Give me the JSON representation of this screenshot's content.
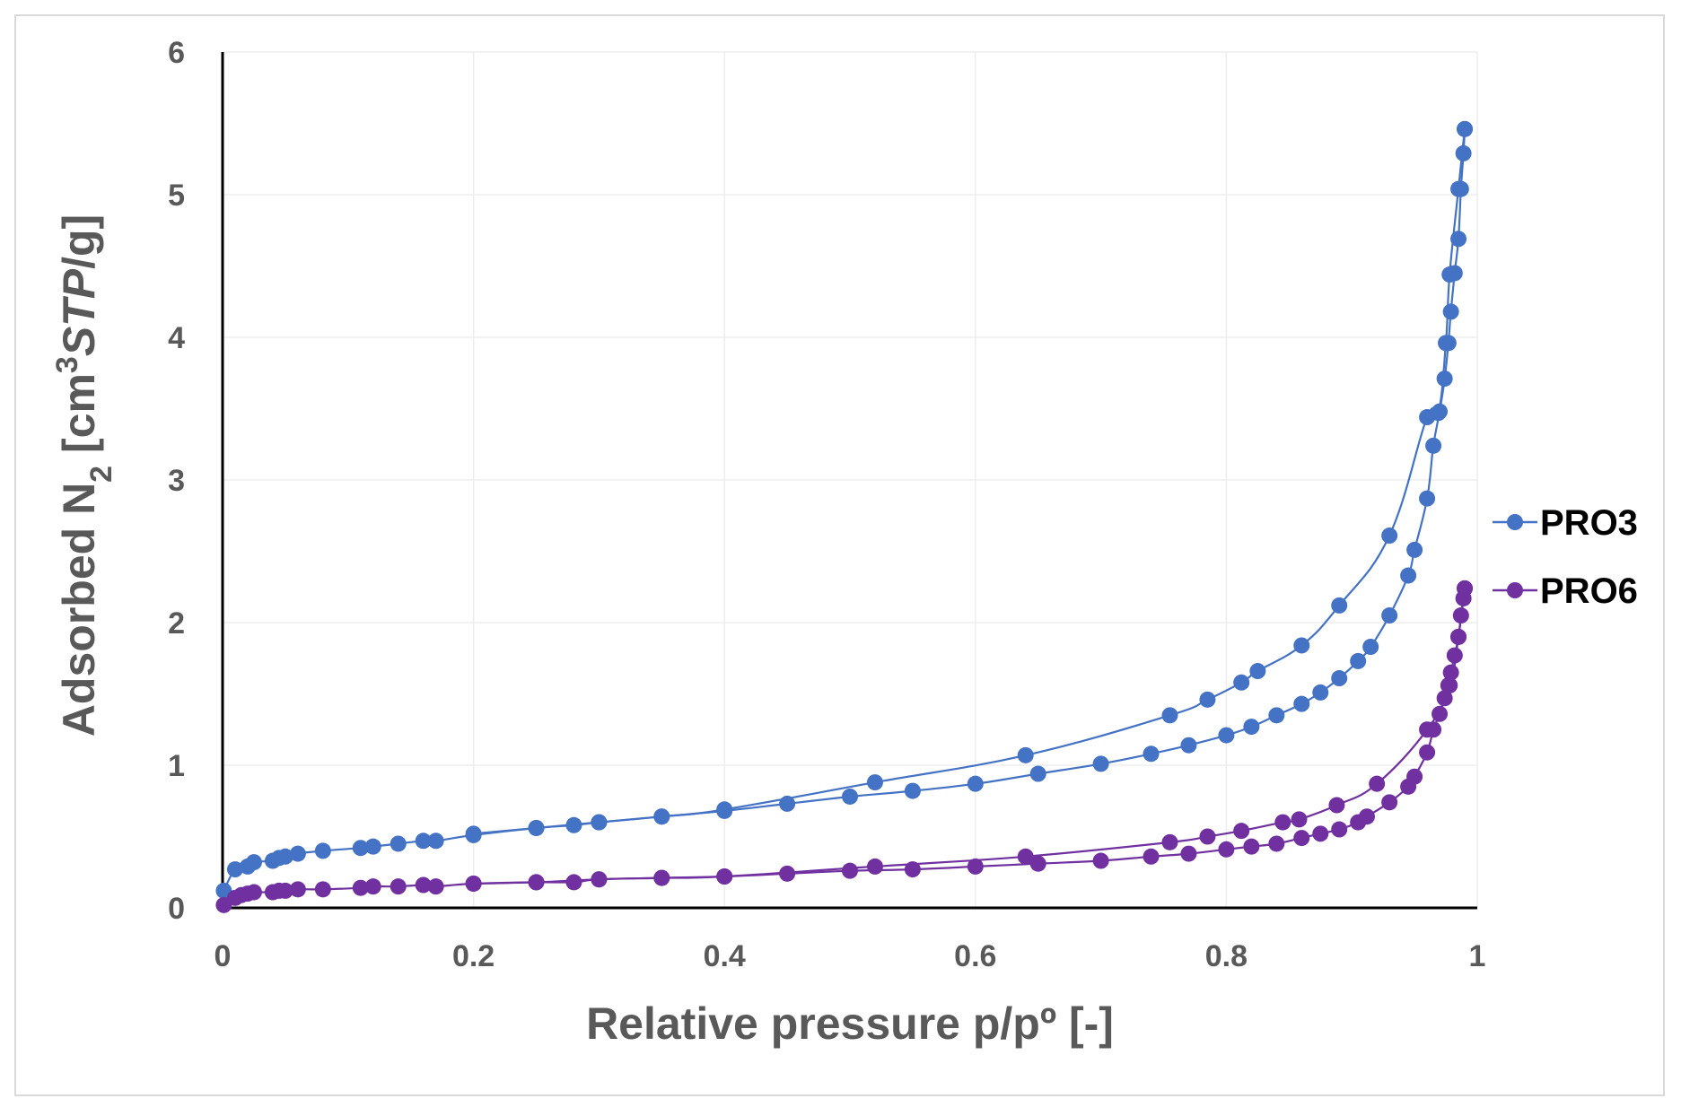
{
  "chart_data": {
    "type": "line",
    "xlabel": "Relative pressure p/pº [-]",
    "ylabel_parts": {
      "main": "Adsorbed N",
      "sub": "2",
      "bracket_open": " [cm",
      "sup": "3",
      "italic": "STP",
      "tail": "/g]"
    },
    "xlim": [
      0,
      1
    ],
    "ylim": [
      0,
      6
    ],
    "x_ticks": [
      "0",
      "0.2",
      "0.4",
      "0.6",
      "0.8",
      "1"
    ],
    "y_ticks": [
      "0",
      "1",
      "2",
      "3",
      "4",
      "5",
      "6"
    ],
    "grid": true,
    "legend_position": "right",
    "series": [
      {
        "name": "PRO3",
        "color": "#4472c4",
        "adsorption": [
          [
            0.001,
            0.12
          ],
          [
            0.01,
            0.27
          ],
          [
            0.02,
            0.29
          ],
          [
            0.025,
            0.32
          ],
          [
            0.04,
            0.33
          ],
          [
            0.045,
            0.35
          ],
          [
            0.05,
            0.36
          ],
          [
            0.06,
            0.38
          ],
          [
            0.08,
            0.4
          ],
          [
            0.11,
            0.42
          ],
          [
            0.12,
            0.43
          ],
          [
            0.14,
            0.45
          ],
          [
            0.16,
            0.47
          ],
          [
            0.17,
            0.47
          ],
          [
            0.2,
            0.51
          ],
          [
            0.25,
            0.56
          ],
          [
            0.28,
            0.58
          ],
          [
            0.3,
            0.6
          ],
          [
            0.35,
            0.64
          ],
          [
            0.4,
            0.68
          ],
          [
            0.45,
            0.73
          ],
          [
            0.5,
            0.78
          ],
          [
            0.55,
            0.82
          ],
          [
            0.6,
            0.87
          ],
          [
            0.65,
            0.94
          ],
          [
            0.7,
            1.01
          ],
          [
            0.74,
            1.08
          ],
          [
            0.77,
            1.14
          ],
          [
            0.8,
            1.21
          ],
          [
            0.82,
            1.27
          ],
          [
            0.84,
            1.35
          ],
          [
            0.86,
            1.43
          ],
          [
            0.875,
            1.51
          ],
          [
            0.89,
            1.61
          ],
          [
            0.905,
            1.73
          ],
          [
            0.915,
            1.83
          ],
          [
            0.93,
            2.05
          ],
          [
            0.945,
            2.33
          ],
          [
            0.95,
            2.51
          ],
          [
            0.96,
            2.87
          ],
          [
            0.965,
            3.24
          ],
          [
            0.97,
            3.48
          ],
          [
            0.974,
            3.71
          ],
          [
            0.977,
            3.96
          ],
          [
            0.979,
            4.18
          ],
          [
            0.982,
            4.45
          ],
          [
            0.985,
            4.69
          ],
          [
            0.987,
            5.04
          ],
          [
            0.989,
            5.29
          ],
          [
            0.99,
            5.46
          ]
        ],
        "desorption": [
          [
            0.99,
            5.46
          ],
          [
            0.985,
            5.04
          ],
          [
            0.978,
            4.44
          ],
          [
            0.975,
            3.96
          ],
          [
            0.969,
            3.47
          ],
          [
            0.96,
            3.44
          ],
          [
            0.93,
            2.61
          ],
          [
            0.89,
            2.12
          ],
          [
            0.86,
            1.84
          ],
          [
            0.825,
            1.66
          ],
          [
            0.812,
            1.58
          ],
          [
            0.785,
            1.46
          ],
          [
            0.755,
            1.35
          ],
          [
            0.64,
            1.07
          ],
          [
            0.52,
            0.88
          ],
          [
            0.4,
            0.69
          ],
          [
            0.35,
            0.64
          ],
          [
            0.3,
            0.6
          ],
          [
            0.25,
            0.56
          ],
          [
            0.2,
            0.52
          ]
        ]
      },
      {
        "name": "PRO6",
        "color": "#7030a0",
        "adsorption": [
          [
            0.001,
            0.02
          ],
          [
            0.01,
            0.07
          ],
          [
            0.015,
            0.09
          ],
          [
            0.02,
            0.1
          ],
          [
            0.025,
            0.11
          ],
          [
            0.04,
            0.11
          ],
          [
            0.045,
            0.12
          ],
          [
            0.05,
            0.12
          ],
          [
            0.06,
            0.13
          ],
          [
            0.08,
            0.13
          ],
          [
            0.11,
            0.14
          ],
          [
            0.12,
            0.15
          ],
          [
            0.14,
            0.15
          ],
          [
            0.16,
            0.16
          ],
          [
            0.17,
            0.15
          ],
          [
            0.2,
            0.17
          ],
          [
            0.25,
            0.18
          ],
          [
            0.28,
            0.18
          ],
          [
            0.3,
            0.2
          ],
          [
            0.35,
            0.21
          ],
          [
            0.4,
            0.22
          ],
          [
            0.45,
            0.24
          ],
          [
            0.5,
            0.26
          ],
          [
            0.55,
            0.27
          ],
          [
            0.6,
            0.29
          ],
          [
            0.65,
            0.31
          ],
          [
            0.7,
            0.33
          ],
          [
            0.74,
            0.36
          ],
          [
            0.77,
            0.38
          ],
          [
            0.8,
            0.41
          ],
          [
            0.82,
            0.43
          ],
          [
            0.84,
            0.45
          ],
          [
            0.86,
            0.49
          ],
          [
            0.875,
            0.52
          ],
          [
            0.89,
            0.55
          ],
          [
            0.905,
            0.6
          ],
          [
            0.912,
            0.64
          ],
          [
            0.93,
            0.74
          ],
          [
            0.945,
            0.85
          ],
          [
            0.95,
            0.92
          ],
          [
            0.96,
            1.09
          ],
          [
            0.965,
            1.25
          ],
          [
            0.97,
            1.36
          ],
          [
            0.974,
            1.47
          ],
          [
            0.977,
            1.56
          ],
          [
            0.979,
            1.65
          ],
          [
            0.982,
            1.77
          ],
          [
            0.985,
            1.9
          ],
          [
            0.987,
            2.05
          ],
          [
            0.989,
            2.17
          ],
          [
            0.99,
            2.24
          ]
        ],
        "desorption": [
          [
            0.99,
            2.24
          ],
          [
            0.985,
            1.9
          ],
          [
            0.978,
            1.56
          ],
          [
            0.96,
            1.25
          ],
          [
            0.92,
            0.87
          ],
          [
            0.888,
            0.72
          ],
          [
            0.858,
            0.62
          ],
          [
            0.845,
            0.6
          ],
          [
            0.812,
            0.54
          ],
          [
            0.785,
            0.5
          ],
          [
            0.755,
            0.46
          ],
          [
            0.64,
            0.36
          ],
          [
            0.52,
            0.29
          ],
          [
            0.4,
            0.22
          ],
          [
            0.35,
            0.21
          ],
          [
            0.3,
            0.2
          ],
          [
            0.25,
            0.18
          ],
          [
            0.2,
            0.17
          ]
        ]
      }
    ]
  }
}
